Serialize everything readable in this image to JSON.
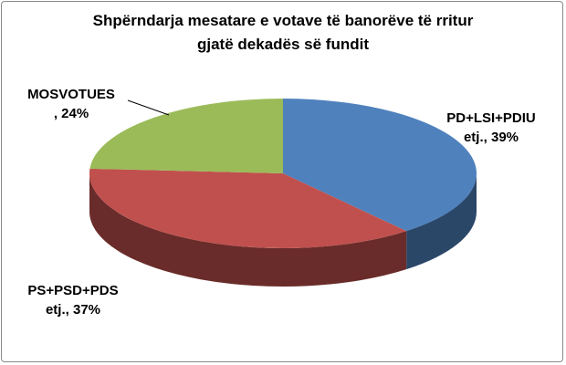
{
  "chart_data": {
    "type": "pie",
    "title": "Shpërndarja mesatare e votave të banorëve të rritur gjatë dekadës së fundit",
    "categories": [
      "PD+LSI+PDIU etj.",
      "PS+PSD+PDS etj.",
      "MOSVOTUES"
    ],
    "values": [
      39,
      37,
      24
    ],
    "value_labels": [
      ", 39%",
      ", 37%",
      ", 24%"
    ],
    "colors": [
      "#4f81bd",
      "#c0504d",
      "#9bbb59"
    ]
  }
}
